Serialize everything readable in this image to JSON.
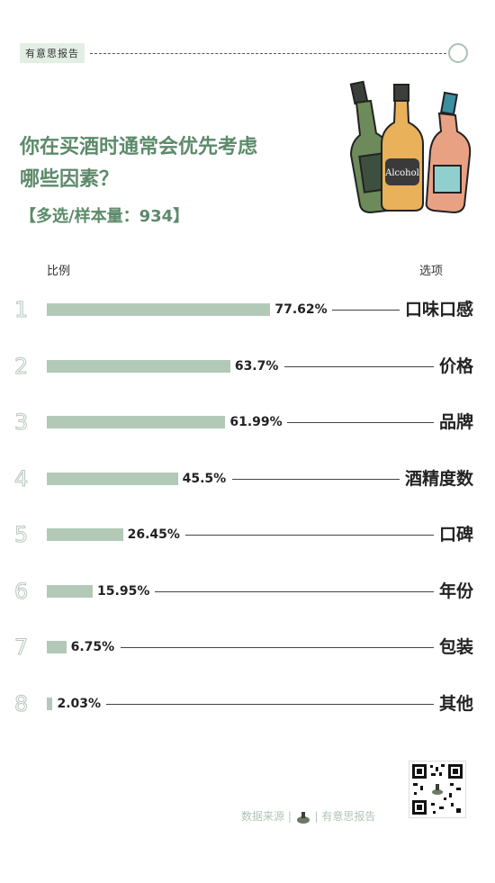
{
  "header": {
    "brand": "有意思报告"
  },
  "title_lines": [
    "你在买酒时通常会优先考虑",
    "哪些因素？"
  ],
  "subtitle": "【多选/样本量：934】",
  "bottle_label": "Alcohol",
  "columns": {
    "left": "比例",
    "right": "选项"
  },
  "footer": {
    "source_label": "数据来源",
    "brand": "有意思报告"
  },
  "colors": {
    "accent": "#5c8a6a",
    "bar": "#b2c9b8"
  },
  "chart_data": {
    "type": "bar",
    "orientation": "horizontal",
    "ranks": [
      "1",
      "2",
      "3",
      "4",
      "5",
      "6",
      "7",
      "8"
    ],
    "categories": [
      "口味口感",
      "价格",
      "品牌",
      "酒精度数",
      "口碑",
      "年份",
      "包装",
      "其他"
    ],
    "values": [
      77.62,
      63.7,
      61.99,
      45.5,
      26.45,
      15.95,
      6.75,
      2.03
    ],
    "value_labels": [
      "77.62%",
      "63.7%",
      "61.99%",
      "45.5%",
      "26.45%",
      "15.95%",
      "6.75%",
      "2.03%"
    ],
    "unit": "%"
  }
}
